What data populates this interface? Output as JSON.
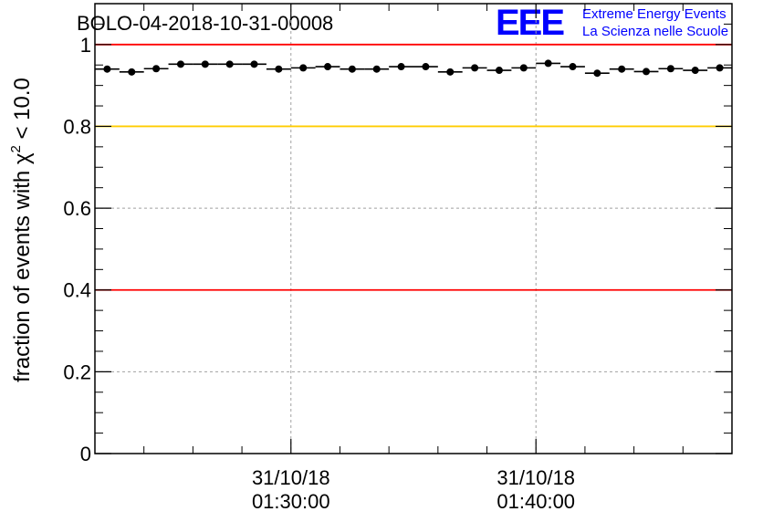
{
  "chart_data": {
    "type": "scatter",
    "title": "BOLO-04-2018-10-31-00008",
    "ylabel": "fraction of events with χ",
    "ylabel_sup": "2",
    "ylabel_tail": " < 10.0",
    "ylim": [
      0,
      1.1
    ],
    "yticks": [
      0,
      0.2,
      0.4,
      0.6,
      0.8,
      1
    ],
    "ytick_labels": [
      "0",
      "0.2",
      "0.4",
      "0.6",
      "0.8",
      "1"
    ],
    "xlim": [
      "2018-10-31 01:22:00",
      "2018-10-31 01:48:00"
    ],
    "xticks": [
      {
        "time": "2018-10-31 01:30:00",
        "date_label": "31/10/18",
        "time_label": "01:30:00"
      },
      {
        "time": "2018-10-31 01:40:00",
        "date_label": "31/10/18",
        "time_label": "01:40:00"
      }
    ],
    "grid": true,
    "reference_lines": [
      {
        "y": 1.0,
        "color": "#ff0000"
      },
      {
        "y": 0.8,
        "color": "#ffcc00"
      },
      {
        "y": 0.4,
        "color": "#ff0000"
      }
    ],
    "series": [
      {
        "marker_color": "#000000",
        "x": [
          "2018-10-31 01:22:30",
          "2018-10-31 01:23:30",
          "2018-10-31 01:24:30",
          "2018-10-31 01:25:30",
          "2018-10-31 01:26:30",
          "2018-10-31 01:27:30",
          "2018-10-31 01:28:30",
          "2018-10-31 01:29:30",
          "2018-10-31 01:30:30",
          "2018-10-31 01:31:30",
          "2018-10-31 01:32:30",
          "2018-10-31 01:33:30",
          "2018-10-31 01:34:30",
          "2018-10-31 01:35:30",
          "2018-10-31 01:36:30",
          "2018-10-31 01:37:30",
          "2018-10-31 01:38:30",
          "2018-10-31 01:39:30",
          "2018-10-31 01:40:30",
          "2018-10-31 01:41:30",
          "2018-10-31 01:42:30",
          "2018-10-31 01:43:30",
          "2018-10-31 01:44:30",
          "2018-10-31 01:45:30",
          "2018-10-31 01:46:30",
          "2018-10-31 01:47:30"
        ],
        "y": [
          0.94,
          0.933,
          0.941,
          0.952,
          0.952,
          0.952,
          0.952,
          0.94,
          0.943,
          0.946,
          0.94,
          0.94,
          0.946,
          0.946,
          0.933,
          0.943,
          0.937,
          0.943,
          0.954,
          0.946,
          0.93,
          0.94,
          0.934,
          0.941,
          0.937,
          0.943
        ]
      }
    ]
  },
  "logo": {
    "text": "EEE",
    "line1": "Extreme Energy Events",
    "line2": "La Scienza nelle Scuole",
    "color": "#0000ff"
  }
}
